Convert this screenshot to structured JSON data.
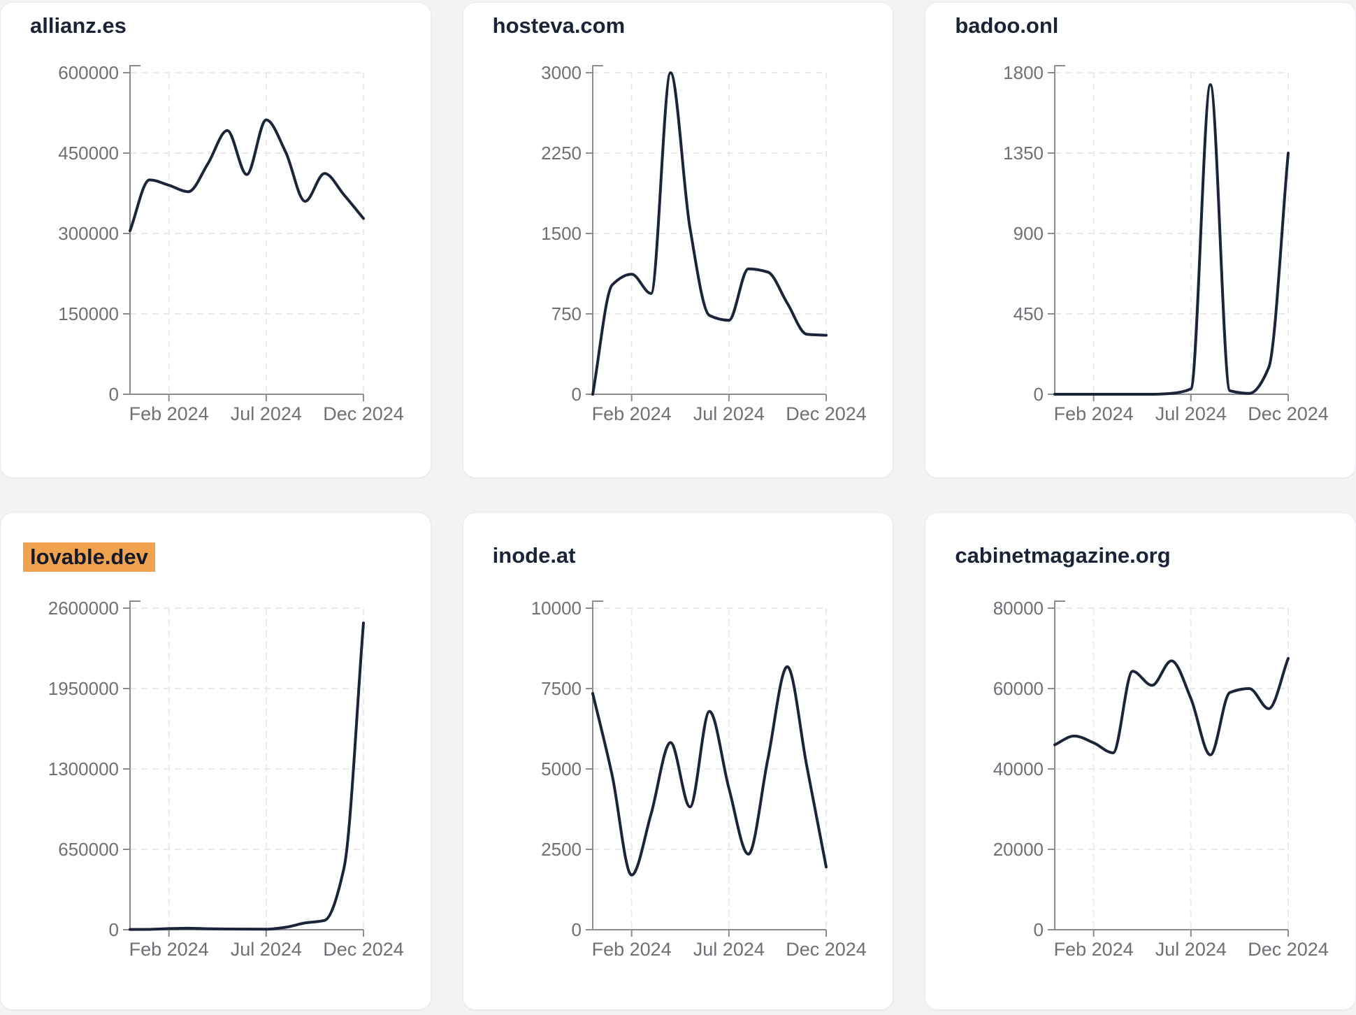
{
  "page": {
    "background": "#f3f3f6",
    "card_background": "#ffffff",
    "card_border": "#e9e9ee"
  },
  "style": {
    "line_color": "#1b2438",
    "title_color": "#1b2337",
    "tick_label_color": "#6f6f76",
    "axis_color": "#8b8b90",
    "grid_color": "#e7e7eb",
    "highlight_color": "#f0a24e"
  },
  "chart_data": [
    {
      "type": "line",
      "title": "allianz.es",
      "highlighted": false,
      "x": [
        "Dec 2023",
        "Jan 2024",
        "Feb 2024",
        "Mar 2024",
        "Apr 2024",
        "May 2024",
        "Jun 2024",
        "Jul 2024",
        "Aug 2024",
        "Sep 2024",
        "Oct 2024",
        "Nov 2024",
        "Dec 2024"
      ],
      "values": [
        305000,
        400000,
        390000,
        378000,
        430000,
        492000,
        410000,
        512000,
        452000,
        360000,
        412000,
        372000,
        328000
      ],
      "y_ticks": [
        0,
        150000,
        300000,
        450000,
        600000
      ],
      "ylim": [
        0,
        600000
      ],
      "x_tick_labels": [
        "Feb 2024",
        "Jul 2024",
        "Dec 2024"
      ],
      "grid": true,
      "legend": "none"
    },
    {
      "type": "line",
      "title": "hosteva.com",
      "highlighted": false,
      "x": [
        "Dec 2023",
        "Jan 2024",
        "Feb 2024",
        "Mar 2024",
        "Apr 2024",
        "May 2024",
        "Jun 2024",
        "Jul 2024",
        "Aug 2024",
        "Sep 2024",
        "Oct 2024",
        "Nov 2024",
        "Dec 2024"
      ],
      "values": [
        0,
        1020,
        1120,
        940,
        3000,
        1550,
        735,
        690,
        1170,
        1140,
        850,
        560,
        550
      ],
      "y_ticks": [
        0,
        750,
        1500,
        2250,
        3000
      ],
      "ylim": [
        0,
        3000
      ],
      "x_tick_labels": [
        "Feb 2024",
        "Jul 2024",
        "Dec 2024"
      ],
      "grid": true,
      "legend": "none"
    },
    {
      "type": "line",
      "title": "badoo.onl",
      "highlighted": false,
      "x": [
        "Dec 2023",
        "Jan 2024",
        "Feb 2024",
        "Mar 2024",
        "Apr 2024",
        "May 2024",
        "Jun 2024",
        "Jul 2024",
        "Aug 2024",
        "Sep 2024",
        "Oct 2024",
        "Nov 2024",
        "Dec 2024"
      ],
      "values": [
        0,
        0,
        0,
        0,
        0,
        0,
        5,
        30,
        1733,
        20,
        5,
        150,
        1350
      ],
      "y_ticks": [
        0,
        450,
        900,
        1350,
        1800
      ],
      "ylim": [
        0,
        1800
      ],
      "x_tick_labels": [
        "Feb 2024",
        "Jul 2024",
        "Dec 2024"
      ],
      "grid": true,
      "legend": "none"
    },
    {
      "type": "line",
      "title": "lovable.dev",
      "highlighted": true,
      "x": [
        "Dec 2023",
        "Jan 2024",
        "Feb 2024",
        "Mar 2024",
        "Apr 2024",
        "May 2024",
        "Jun 2024",
        "Jul 2024",
        "Aug 2024",
        "Sep 2024",
        "Oct 2024",
        "Nov 2024",
        "Dec 2024"
      ],
      "values": [
        2000,
        3000,
        9000,
        12000,
        8000,
        6000,
        5000,
        4000,
        20000,
        55000,
        75000,
        500000,
        2480000
      ],
      "y_ticks": [
        0,
        650000,
        1300000,
        1950000,
        2600000
      ],
      "ylim": [
        0,
        2600000
      ],
      "x_tick_labels": [
        "Feb 2024",
        "Jul 2024",
        "Dec 2024"
      ],
      "grid": true,
      "legend": "none"
    },
    {
      "type": "line",
      "title": "inode.at",
      "highlighted": false,
      "x": [
        "Dec 2023",
        "Jan 2024",
        "Feb 2024",
        "Mar 2024",
        "Apr 2024",
        "May 2024",
        "Jun 2024",
        "Jul 2024",
        "Aug 2024",
        "Sep 2024",
        "Oct 2024",
        "Nov 2024",
        "Dec 2024"
      ],
      "values": [
        7350,
        4800,
        1700,
        3600,
        5820,
        3820,
        6790,
        4400,
        2350,
        5300,
        8180,
        5100,
        1950
      ],
      "y_ticks": [
        0,
        2500,
        5000,
        7500,
        10000
      ],
      "ylim": [
        0,
        10000
      ],
      "x_tick_labels": [
        "Feb 2024",
        "Jul 2024",
        "Dec 2024"
      ],
      "grid": true,
      "legend": "none"
    },
    {
      "type": "line",
      "title": "cabinetmagazine.org",
      "highlighted": false,
      "x": [
        "Dec 2023",
        "Jan 2024",
        "Feb 2024",
        "Mar 2024",
        "Apr 2024",
        "May 2024",
        "Jun 2024",
        "Jul 2024",
        "Aug 2024",
        "Sep 2024",
        "Oct 2024",
        "Nov 2024",
        "Dec 2024"
      ],
      "values": [
        46000,
        48200,
        46500,
        44000,
        64300,
        60800,
        66900,
        57500,
        43500,
        59000,
        60000,
        55000,
        67500
      ],
      "y_ticks": [
        0,
        20000,
        40000,
        60000,
        80000
      ],
      "ylim": [
        0,
        80000
      ],
      "x_tick_labels": [
        "Feb 2024",
        "Jul 2024",
        "Dec 2024"
      ],
      "grid": true,
      "legend": "none"
    }
  ]
}
